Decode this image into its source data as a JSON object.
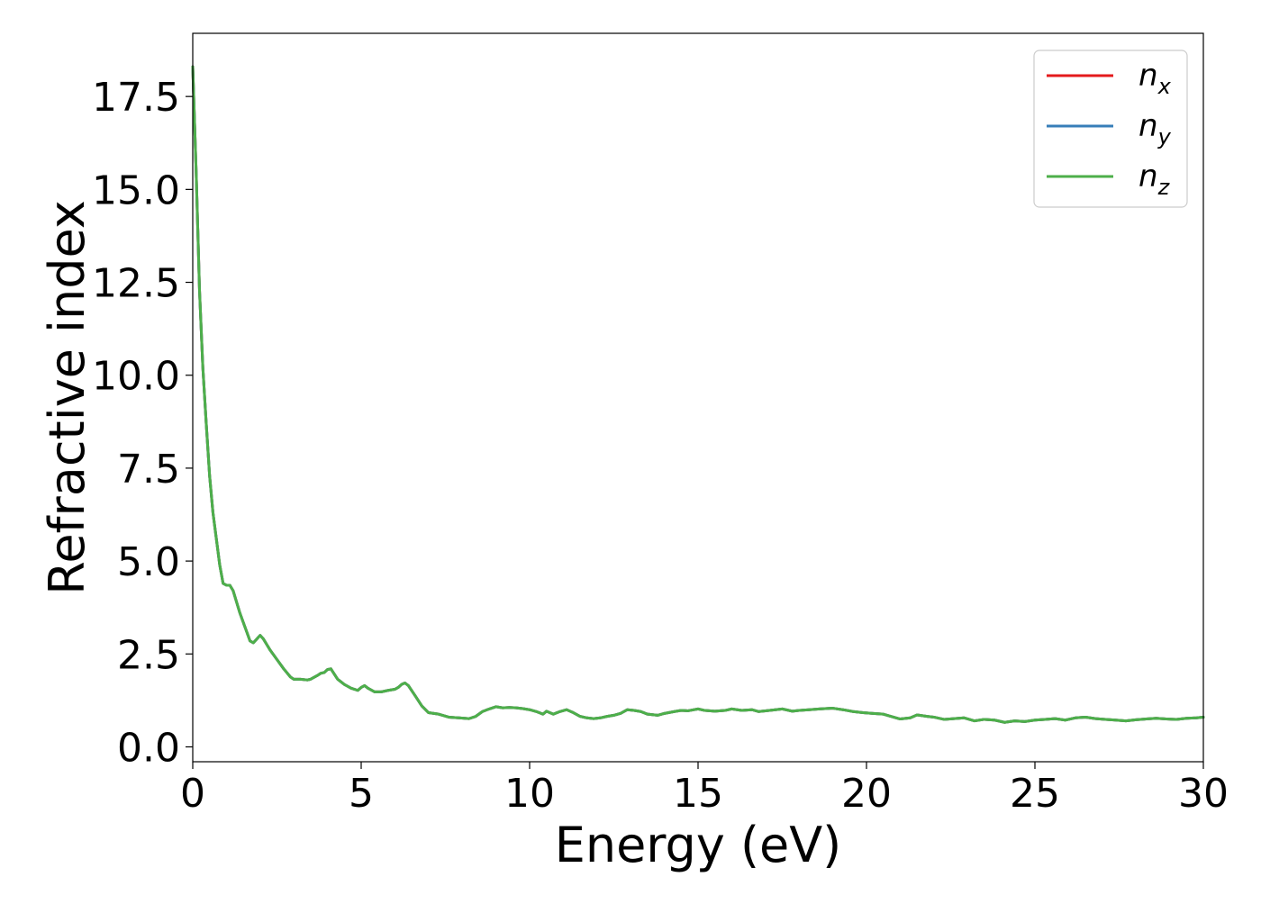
{
  "chart_data": {
    "type": "line",
    "title": "",
    "xlabel": "Energy (eV)",
    "ylabel": "Refractive index",
    "xlim": [
      0,
      30
    ],
    "ylim": [
      -0.4,
      19.2
    ],
    "xticks": [
      0,
      5,
      10,
      15,
      20,
      25,
      30
    ],
    "xtick_labels": [
      "0",
      "5",
      "10",
      "15",
      "20",
      "25",
      "30"
    ],
    "yticks": [
      0.0,
      2.5,
      5.0,
      7.5,
      10.0,
      12.5,
      15.0,
      17.5
    ],
    "ytick_labels": [
      "0.0",
      "2.5",
      "5.0",
      "7.5",
      "10.0",
      "12.5",
      "15.0",
      "17.5"
    ],
    "grid": false,
    "legend_position": "top-right",
    "series": [
      {
        "name": "n_x",
        "label_base": "n",
        "label_sub": "x",
        "color": "#e41a1c",
        "x": [
          0,
          0.1,
          0.2,
          0.3,
          0.4,
          0.5,
          0.6,
          0.7,
          0.8,
          0.9,
          1.0,
          1.1,
          1.2,
          1.3,
          1.4,
          1.5,
          1.6,
          1.7,
          1.8,
          1.9,
          2.0,
          2.1,
          2.2,
          2.3,
          2.5,
          2.7,
          2.9,
          3.0,
          3.2,
          3.4,
          3.5,
          3.7,
          3.8,
          3.9,
          4.0,
          4.1,
          4.3,
          4.5,
          4.7,
          4.9,
          5.0,
          5.1,
          5.2,
          5.4,
          5.6,
          5.8,
          6.0,
          6.1,
          6.2,
          6.3,
          6.4,
          6.6,
          6.8,
          7.0,
          7.3,
          7.6,
          7.9,
          8.2,
          8.4,
          8.6,
          8.8,
          9.0,
          9.2,
          9.4,
          9.6,
          9.8,
          10.0,
          10.2,
          10.4,
          10.5,
          10.7,
          10.9,
          11.1,
          11.3,
          11.5,
          11.7,
          11.9,
          12.1,
          12.3,
          12.5,
          12.7,
          12.9,
          13.1,
          13.3,
          13.5,
          13.8,
          14.0,
          14.3,
          14.5,
          14.7,
          15.0,
          15.2,
          15.5,
          15.8,
          16.0,
          16.3,
          16.6,
          16.8,
          17.0,
          17.3,
          17.5,
          17.8,
          18.0,
          18.3,
          18.6,
          19.0,
          19.3,
          19.6,
          19.9,
          20.2,
          20.5,
          20.8,
          21.0,
          21.3,
          21.5,
          21.8,
          22.0,
          22.3,
          22.6,
          22.9,
          23.2,
          23.5,
          23.8,
          24.1,
          24.4,
          24.7,
          25.0,
          25.3,
          25.6,
          25.9,
          26.2,
          26.5,
          26.8,
          27.1,
          27.4,
          27.7,
          28.0,
          28.3,
          28.6,
          28.9,
          29.2,
          29.5,
          29.8,
          30.0
        ],
        "y": [
          18.3,
          15.5,
          12.3,
          10.2,
          8.7,
          7.3,
          6.3,
          5.6,
          4.9,
          4.4,
          4.35,
          4.35,
          4.2,
          3.9,
          3.6,
          3.35,
          3.1,
          2.85,
          2.8,
          2.9,
          3.0,
          2.9,
          2.75,
          2.6,
          2.35,
          2.1,
          1.88,
          1.82,
          1.82,
          1.8,
          1.82,
          1.92,
          1.98,
          2.0,
          2.08,
          2.1,
          1.82,
          1.68,
          1.58,
          1.52,
          1.6,
          1.65,
          1.58,
          1.48,
          1.48,
          1.52,
          1.55,
          1.6,
          1.68,
          1.72,
          1.65,
          1.38,
          1.1,
          0.92,
          0.88,
          0.8,
          0.78,
          0.76,
          0.82,
          0.95,
          1.02,
          1.08,
          1.05,
          1.06,
          1.05,
          1.03,
          1.0,
          0.95,
          0.88,
          0.96,
          0.88,
          0.95,
          1.0,
          0.92,
          0.82,
          0.78,
          0.76,
          0.78,
          0.82,
          0.85,
          0.9,
          1.0,
          0.98,
          0.95,
          0.88,
          0.85,
          0.9,
          0.95,
          0.98,
          0.97,
          1.02,
          0.98,
          0.96,
          0.98,
          1.02,
          0.98,
          1.0,
          0.95,
          0.97,
          1.0,
          1.02,
          0.96,
          0.98,
          1.0,
          1.02,
          1.04,
          1.0,
          0.95,
          0.92,
          0.9,
          0.88,
          0.8,
          0.75,
          0.78,
          0.86,
          0.82,
          0.8,
          0.74,
          0.76,
          0.78,
          0.7,
          0.74,
          0.72,
          0.66,
          0.7,
          0.68,
          0.72,
          0.74,
          0.76,
          0.72,
          0.78,
          0.8,
          0.76,
          0.74,
          0.72,
          0.7,
          0.73,
          0.75,
          0.77,
          0.75,
          0.74,
          0.77,
          0.78,
          0.8
        ]
      },
      {
        "name": "n_y",
        "label_base": "n",
        "label_sub": "y",
        "color": "#377eb8",
        "x": [
          0,
          0.1,
          0.2,
          0.3,
          0.4,
          0.5,
          0.6,
          0.7,
          0.8,
          0.9,
          1.0,
          1.1,
          1.2,
          1.3,
          1.4,
          1.5,
          1.6,
          1.7,
          1.8,
          1.9,
          2.0,
          2.1,
          2.2,
          2.3,
          2.5,
          2.7,
          2.9,
          3.0,
          3.2,
          3.4,
          3.5,
          3.7,
          3.8,
          3.9,
          4.0,
          4.1,
          4.3,
          4.5,
          4.7,
          4.9,
          5.0,
          5.1,
          5.2,
          5.4,
          5.6,
          5.8,
          6.0,
          6.1,
          6.2,
          6.3,
          6.4,
          6.6,
          6.8,
          7.0,
          7.3,
          7.6,
          7.9,
          8.2,
          8.4,
          8.6,
          8.8,
          9.0,
          9.2,
          9.4,
          9.6,
          9.8,
          10.0,
          10.2,
          10.4,
          10.5,
          10.7,
          10.9,
          11.1,
          11.3,
          11.5,
          11.7,
          11.9,
          12.1,
          12.3,
          12.5,
          12.7,
          12.9,
          13.1,
          13.3,
          13.5,
          13.8,
          14.0,
          14.3,
          14.5,
          14.7,
          15.0,
          15.2,
          15.5,
          15.8,
          16.0,
          16.3,
          16.6,
          16.8,
          17.0,
          17.3,
          17.5,
          17.8,
          18.0,
          18.3,
          18.6,
          19.0,
          19.3,
          19.6,
          19.9,
          20.2,
          20.5,
          20.8,
          21.0,
          21.3,
          21.5,
          21.8,
          22.0,
          22.3,
          22.6,
          22.9,
          23.2,
          23.5,
          23.8,
          24.1,
          24.4,
          24.7,
          25.0,
          25.3,
          25.6,
          25.9,
          26.2,
          26.5,
          26.8,
          27.1,
          27.4,
          27.7,
          28.0,
          28.3,
          28.6,
          28.9,
          29.2,
          29.5,
          29.8,
          30.0
        ],
        "y": [
          18.3,
          15.5,
          12.3,
          10.2,
          8.7,
          7.3,
          6.3,
          5.6,
          4.9,
          4.4,
          4.35,
          4.35,
          4.2,
          3.9,
          3.6,
          3.35,
          3.1,
          2.85,
          2.8,
          2.9,
          3.0,
          2.9,
          2.75,
          2.6,
          2.35,
          2.1,
          1.88,
          1.82,
          1.82,
          1.8,
          1.82,
          1.92,
          1.98,
          2.0,
          2.08,
          2.1,
          1.82,
          1.68,
          1.58,
          1.52,
          1.6,
          1.65,
          1.58,
          1.48,
          1.48,
          1.52,
          1.55,
          1.6,
          1.68,
          1.72,
          1.65,
          1.38,
          1.1,
          0.92,
          0.88,
          0.8,
          0.78,
          0.76,
          0.82,
          0.95,
          1.02,
          1.08,
          1.05,
          1.06,
          1.05,
          1.03,
          1.0,
          0.95,
          0.88,
          0.96,
          0.88,
          0.95,
          1.0,
          0.92,
          0.82,
          0.78,
          0.76,
          0.78,
          0.82,
          0.85,
          0.9,
          1.0,
          0.98,
          0.95,
          0.88,
          0.85,
          0.9,
          0.95,
          0.98,
          0.97,
          1.02,
          0.98,
          0.96,
          0.98,
          1.02,
          0.98,
          1.0,
          0.95,
          0.97,
          1.0,
          1.02,
          0.96,
          0.98,
          1.0,
          1.02,
          1.04,
          1.0,
          0.95,
          0.92,
          0.9,
          0.88,
          0.8,
          0.75,
          0.78,
          0.86,
          0.82,
          0.8,
          0.74,
          0.76,
          0.78,
          0.7,
          0.74,
          0.72,
          0.66,
          0.7,
          0.68,
          0.72,
          0.74,
          0.76,
          0.72,
          0.78,
          0.8,
          0.76,
          0.74,
          0.72,
          0.7,
          0.73,
          0.75,
          0.77,
          0.75,
          0.74,
          0.77,
          0.78,
          0.8
        ]
      },
      {
        "name": "n_z",
        "label_base": "n",
        "label_sub": "z",
        "color": "#4daf4a",
        "x": [
          0,
          0.1,
          0.2,
          0.3,
          0.4,
          0.5,
          0.6,
          0.7,
          0.8,
          0.9,
          1.0,
          1.1,
          1.2,
          1.3,
          1.4,
          1.5,
          1.6,
          1.7,
          1.8,
          1.9,
          2.0,
          2.1,
          2.2,
          2.3,
          2.5,
          2.7,
          2.9,
          3.0,
          3.2,
          3.4,
          3.5,
          3.7,
          3.8,
          3.9,
          4.0,
          4.1,
          4.3,
          4.5,
          4.7,
          4.9,
          5.0,
          5.1,
          5.2,
          5.4,
          5.6,
          5.8,
          6.0,
          6.1,
          6.2,
          6.3,
          6.4,
          6.6,
          6.8,
          7.0,
          7.3,
          7.6,
          7.9,
          8.2,
          8.4,
          8.6,
          8.8,
          9.0,
          9.2,
          9.4,
          9.6,
          9.8,
          10.0,
          10.2,
          10.4,
          10.5,
          10.7,
          10.9,
          11.1,
          11.3,
          11.5,
          11.7,
          11.9,
          12.1,
          12.3,
          12.5,
          12.7,
          12.9,
          13.1,
          13.3,
          13.5,
          13.8,
          14.0,
          14.3,
          14.5,
          14.7,
          15.0,
          15.2,
          15.5,
          15.8,
          16.0,
          16.3,
          16.6,
          16.8,
          17.0,
          17.3,
          17.5,
          17.8,
          18.0,
          18.3,
          18.6,
          19.0,
          19.3,
          19.6,
          19.9,
          20.2,
          20.5,
          20.8,
          21.0,
          21.3,
          21.5,
          21.8,
          22.0,
          22.3,
          22.6,
          22.9,
          23.2,
          23.5,
          23.8,
          24.1,
          24.4,
          24.7,
          25.0,
          25.3,
          25.6,
          25.9,
          26.2,
          26.5,
          26.8,
          27.1,
          27.4,
          27.7,
          28.0,
          28.3,
          28.6,
          28.9,
          29.2,
          29.5,
          29.8,
          30.0
        ],
        "y": [
          18.3,
          15.5,
          12.3,
          10.2,
          8.7,
          7.3,
          6.3,
          5.6,
          4.9,
          4.4,
          4.35,
          4.35,
          4.2,
          3.9,
          3.6,
          3.35,
          3.1,
          2.85,
          2.8,
          2.9,
          3.0,
          2.9,
          2.75,
          2.6,
          2.35,
          2.1,
          1.88,
          1.82,
          1.82,
          1.8,
          1.82,
          1.92,
          1.98,
          2.0,
          2.08,
          2.1,
          1.82,
          1.68,
          1.58,
          1.52,
          1.6,
          1.65,
          1.58,
          1.48,
          1.48,
          1.52,
          1.55,
          1.6,
          1.68,
          1.72,
          1.65,
          1.38,
          1.1,
          0.92,
          0.88,
          0.8,
          0.78,
          0.76,
          0.82,
          0.95,
          1.02,
          1.08,
          1.05,
          1.06,
          1.05,
          1.03,
          1.0,
          0.95,
          0.88,
          0.96,
          0.88,
          0.95,
          1.0,
          0.92,
          0.82,
          0.78,
          0.76,
          0.78,
          0.82,
          0.85,
          0.9,
          1.0,
          0.98,
          0.95,
          0.88,
          0.85,
          0.9,
          0.95,
          0.98,
          0.97,
          1.02,
          0.98,
          0.96,
          0.98,
          1.02,
          0.98,
          1.0,
          0.95,
          0.97,
          1.0,
          1.02,
          0.96,
          0.98,
          1.0,
          1.02,
          1.04,
          1.0,
          0.95,
          0.92,
          0.9,
          0.88,
          0.8,
          0.75,
          0.78,
          0.86,
          0.82,
          0.8,
          0.74,
          0.76,
          0.78,
          0.7,
          0.74,
          0.72,
          0.66,
          0.7,
          0.68,
          0.72,
          0.74,
          0.76,
          0.72,
          0.78,
          0.8,
          0.76,
          0.74,
          0.72,
          0.7,
          0.73,
          0.75,
          0.77,
          0.75,
          0.74,
          0.77,
          0.78,
          0.8
        ]
      }
    ]
  }
}
